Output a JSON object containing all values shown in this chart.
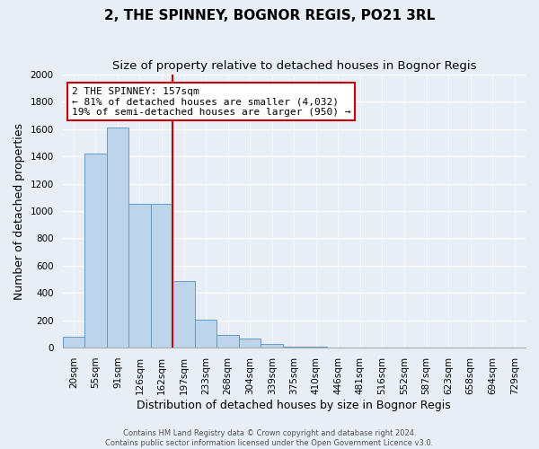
{
  "title": "2, THE SPINNEY, BOGNOR REGIS, PO21 3RL",
  "subtitle": "Size of property relative to detached houses in Bognor Regis",
  "xlabel": "Distribution of detached houses by size in Bognor Regis",
  "ylabel": "Number of detached properties",
  "categories": [
    "20sqm",
    "55sqm",
    "91sqm",
    "126sqm",
    "162sqm",
    "197sqm",
    "233sqm",
    "268sqm",
    "304sqm",
    "339sqm",
    "375sqm",
    "410sqm",
    "446sqm",
    "481sqm",
    "516sqm",
    "552sqm",
    "587sqm",
    "623sqm",
    "658sqm",
    "694sqm",
    "729sqm"
  ],
  "values": [
    80,
    1420,
    1610,
    1050,
    1050,
    490,
    205,
    90,
    65,
    30,
    10,
    5,
    0,
    0,
    0,
    0,
    0,
    0,
    0,
    0,
    0
  ],
  "bar_color": "#bdd5ea",
  "bar_edge_color": "#6699cc",
  "vline_x": 4.5,
  "vline_color": "#cc0000",
  "ylim": [
    0,
    2000
  ],
  "yticks": [
    0,
    200,
    400,
    600,
    800,
    1000,
    1200,
    1400,
    1600,
    1800,
    2000
  ],
  "annotation_text": "2 THE SPINNEY: 157sqm\n← 81% of detached houses are smaller (4,032)\n19% of semi-detached houses are larger (950) →",
  "footer_text": "Contains HM Land Registry data © Crown copyright and database right 2024.\nContains public sector information licensed under the Open Government Licence v3.0.",
  "bg_color": "#e8eef5",
  "grid_color": "#ffffff",
  "title_fontsize": 11,
  "subtitle_fontsize": 9.5,
  "axis_label_fontsize": 9,
  "tick_fontsize": 7.5,
  "annot_fontsize": 8,
  "footer_fontsize": 6
}
